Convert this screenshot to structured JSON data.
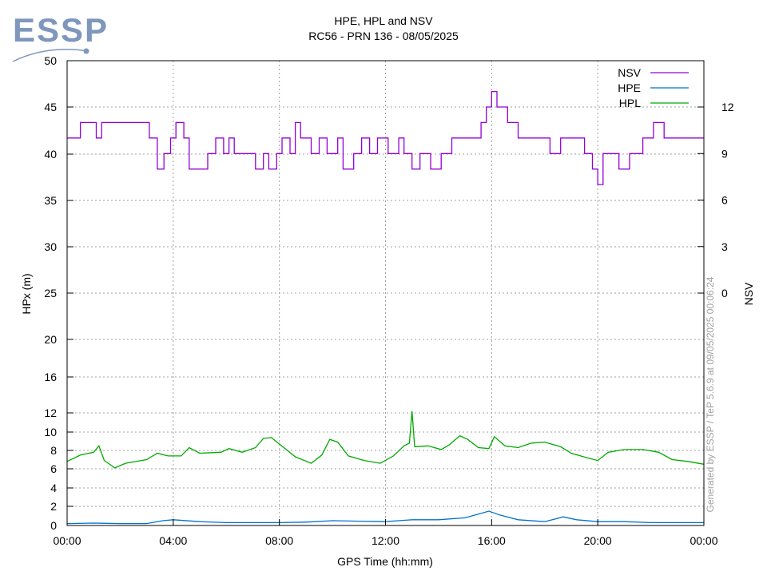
{
  "logo": {
    "text": "ESSP",
    "color": "#7f97bd"
  },
  "chart_data": {
    "type": "line",
    "title": "HPE, HPL and NSV",
    "subtitle": "RC56 - PRN 136 - 08/05/2025",
    "xlabel": "GPS Time (hh:mm)",
    "ylabel": "HPx (m)",
    "y2label": "NSV",
    "watermark": "Generated by ESSP / TeP 5.6.9 at 09/05/2025 00:06:24",
    "x_range_hours": [
      0,
      24
    ],
    "x_ticks": [
      "00:00",
      "04:00",
      "08:00",
      "12:00",
      "16:00",
      "20:00",
      "00:00"
    ],
    "y_ticks": [
      0,
      2,
      4,
      6,
      8,
      10,
      12,
      16,
      20,
      25,
      30,
      35,
      40,
      45,
      50
    ],
    "y2_ticks": [
      0,
      3,
      6,
      9,
      12
    ],
    "grid": true,
    "legend_position": "top-right",
    "series": [
      {
        "name": "NSV",
        "axis": "right",
        "color": "#9400d3",
        "points": [
          [
            0,
            10
          ],
          [
            0.5,
            11
          ],
          [
            1.1,
            10
          ],
          [
            1.3,
            11
          ],
          [
            2.0,
            11
          ],
          [
            2.7,
            11
          ],
          [
            3.1,
            10
          ],
          [
            3.4,
            8
          ],
          [
            3.65,
            9
          ],
          [
            3.9,
            10
          ],
          [
            4.1,
            11
          ],
          [
            4.4,
            10
          ],
          [
            4.6,
            8
          ],
          [
            5.3,
            9
          ],
          [
            5.6,
            10
          ],
          [
            5.9,
            9
          ],
          [
            6.1,
            10
          ],
          [
            6.3,
            9
          ],
          [
            6.9,
            9
          ],
          [
            7.1,
            8
          ],
          [
            7.4,
            9
          ],
          [
            7.6,
            8
          ],
          [
            7.9,
            9
          ],
          [
            8.1,
            10
          ],
          [
            8.4,
            9
          ],
          [
            8.6,
            11
          ],
          [
            8.8,
            10
          ],
          [
            9.2,
            9
          ],
          [
            9.5,
            10
          ],
          [
            9.8,
            9
          ],
          [
            10.2,
            10
          ],
          [
            10.4,
            8
          ],
          [
            10.8,
            9
          ],
          [
            11.1,
            10
          ],
          [
            11.4,
            9
          ],
          [
            11.7,
            10
          ],
          [
            12.1,
            9
          ],
          [
            12.5,
            10
          ],
          [
            12.7,
            9
          ],
          [
            13.0,
            8
          ],
          [
            13.3,
            9
          ],
          [
            13.7,
            8
          ],
          [
            14.1,
            9
          ],
          [
            14.5,
            10
          ],
          [
            15.3,
            10
          ],
          [
            15.6,
            11
          ],
          [
            15.8,
            12
          ],
          [
            16.0,
            13
          ],
          [
            16.2,
            12
          ],
          [
            16.6,
            11
          ],
          [
            17.0,
            10
          ],
          [
            17.6,
            10
          ],
          [
            18.2,
            9
          ],
          [
            18.6,
            10
          ],
          [
            19.0,
            10
          ],
          [
            19.5,
            9
          ],
          [
            19.8,
            8
          ],
          [
            20.0,
            7
          ],
          [
            20.2,
            9
          ],
          [
            20.8,
            8
          ],
          [
            21.2,
            9
          ],
          [
            21.7,
            10
          ],
          [
            22.1,
            11
          ],
          [
            22.5,
            10
          ],
          [
            23.0,
            10
          ],
          [
            23.6,
            10
          ],
          [
            24,
            10
          ]
        ]
      },
      {
        "name": "HPE",
        "axis": "left",
        "color": "#0072cf",
        "points": [
          [
            0,
            0.2
          ],
          [
            1,
            0.25
          ],
          [
            2,
            0.2
          ],
          [
            3,
            0.2
          ],
          [
            3.6,
            0.5
          ],
          [
            4,
            0.6
          ],
          [
            5,
            0.4
          ],
          [
            6,
            0.3
          ],
          [
            7,
            0.3
          ],
          [
            8,
            0.3
          ],
          [
            9,
            0.35
          ],
          [
            10,
            0.5
          ],
          [
            11,
            0.45
          ],
          [
            12,
            0.4
          ],
          [
            13,
            0.6
          ],
          [
            14,
            0.6
          ],
          [
            15,
            0.8
          ],
          [
            15.9,
            1.5
          ],
          [
            16.3,
            1.1
          ],
          [
            17,
            0.6
          ],
          [
            18,
            0.4
          ],
          [
            18.7,
            0.9
          ],
          [
            19.2,
            0.6
          ],
          [
            20,
            0.4
          ],
          [
            21,
            0.4
          ],
          [
            22,
            0.3
          ],
          [
            23,
            0.3
          ],
          [
            24,
            0.3
          ]
        ]
      },
      {
        "name": "HPL",
        "axis": "left",
        "color": "#00aa00",
        "points": [
          [
            0,
            6.8
          ],
          [
            0.5,
            7.5
          ],
          [
            1.0,
            7.8
          ],
          [
            1.2,
            8.5
          ],
          [
            1.4,
            6.9
          ],
          [
            1.8,
            6.1
          ],
          [
            2.2,
            6.6
          ],
          [
            3.0,
            7.0
          ],
          [
            3.4,
            7.7
          ],
          [
            3.8,
            7.4
          ],
          [
            4.3,
            7.4
          ],
          [
            4.6,
            8.3
          ],
          [
            5.0,
            7.7
          ],
          [
            5.8,
            7.8
          ],
          [
            6.1,
            8.2
          ],
          [
            6.6,
            7.8
          ],
          [
            7.1,
            8.3
          ],
          [
            7.4,
            9.3
          ],
          [
            7.7,
            9.4
          ],
          [
            8.0,
            8.7
          ],
          [
            8.6,
            7.3
          ],
          [
            9.2,
            6.6
          ],
          [
            9.6,
            7.5
          ],
          [
            9.9,
            9.2
          ],
          [
            10.2,
            8.9
          ],
          [
            10.6,
            7.4
          ],
          [
            11.2,
            6.9
          ],
          [
            11.8,
            6.6
          ],
          [
            12.3,
            7.4
          ],
          [
            12.7,
            8.5
          ],
          [
            12.9,
            8.8
          ],
          [
            13.0,
            12.2
          ],
          [
            13.1,
            8.4
          ],
          [
            13.6,
            8.5
          ],
          [
            14.1,
            8.1
          ],
          [
            14.4,
            8.6
          ],
          [
            14.8,
            9.6
          ],
          [
            15.1,
            9.2
          ],
          [
            15.5,
            8.3
          ],
          [
            15.9,
            8.2
          ],
          [
            16.1,
            9.5
          ],
          [
            16.5,
            8.5
          ],
          [
            17.0,
            8.3
          ],
          [
            17.5,
            8.8
          ],
          [
            18.0,
            8.9
          ],
          [
            18.6,
            8.4
          ],
          [
            19.0,
            7.7
          ],
          [
            19.6,
            7.2
          ],
          [
            20.0,
            6.9
          ],
          [
            20.4,
            7.8
          ],
          [
            21.0,
            8.1
          ],
          [
            21.7,
            8.1
          ],
          [
            22.3,
            7.8
          ],
          [
            22.8,
            7.0
          ],
          [
            23.4,
            6.8
          ],
          [
            24,
            6.5
          ]
        ]
      }
    ]
  }
}
